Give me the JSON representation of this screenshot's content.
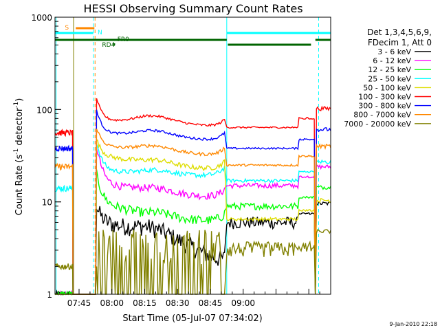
{
  "chart_data": {
    "type": "line",
    "title": "HESSI Observing Summary Count Rates",
    "xlabel": "Start Time (05-Jul-07 07:34:02)",
    "ylabel_main": "Count Rate (s",
    "ylabel_sup1": "-1",
    "ylabel_mid": " detector",
    "ylabel_sup2": "-1",
    "ylabel_end": ")",
    "y_scale": "log",
    "ylim": [
      1,
      1000
    ],
    "xlim_minutes": [
      34,
      160
    ],
    "x_ticks": [
      {
        "min": 45,
        "label": "07:45"
      },
      {
        "min": 60,
        "label": "08:00"
      },
      {
        "min": 75,
        "label": "08:15"
      },
      {
        "min": 90,
        "label": "08:30"
      },
      {
        "min": 105,
        "label": "08:45"
      },
      {
        "min": 120,
        "label": "09:00"
      }
    ],
    "y_ticks": [
      {
        "value": 1,
        "label": "1"
      },
      {
        "value": 10,
        "label": "10"
      },
      {
        "value": 100,
        "label": "100"
      },
      {
        "value": 1000,
        "label": "1000"
      }
    ],
    "legend_title_1": "Det 1,3,4,5,6,9,",
    "legend_title_2": "FDecim 1, Att 0",
    "legend_position": "right",
    "series": [
      {
        "name": "3 - 6 keV",
        "color": "#000000",
        "pre": 1,
        "plateau": [
          1.5,
          6.0,
          5.0,
          2.0
        ],
        "post": 6.0,
        "wobble": 0.22
      },
      {
        "name": "6 - 12 keV",
        "color": "#ff00ff",
        "pre": 1,
        "plateau": [
          2.5,
          16.0,
          13.0,
          11.0
        ],
        "post": 15.0,
        "wobble": 0.09
      },
      {
        "name": "12 - 25 keV",
        "color": "#00ff00",
        "pre": 1,
        "plateau": [
          2.0,
          10.0,
          7.0,
          6.0
        ],
        "post": 9.0,
        "wobble": 0.12
      },
      {
        "name": "25 - 50 keV",
        "color": "#00ffff",
        "pre": 14,
        "plateau": [
          2.0,
          22.0,
          20.0,
          19.0
        ],
        "post": 17.0,
        "wobble": 0.06
      },
      {
        "name": "50 - 100 keV",
        "color": "#dddd00",
        "pre": 0,
        "plateau": [
          1.5,
          32.0,
          26.0,
          22.0
        ],
        "post": 6.5,
        "wobble": 0.06
      },
      {
        "name": "100 - 300 keV",
        "color": "#ff0000",
        "pre": 56,
        "plateau": [
          1.8,
          74.0,
          78.0,
          63.0
        ],
        "post": 64.0,
        "wobble": 0.03
      },
      {
        "name": "300 - 800 keV",
        "color": "#0000ff",
        "pre": 38,
        "plateau": [
          1.8,
          55.0,
          54.0,
          45.0
        ],
        "post": 38.0,
        "wobble": 0.03
      },
      {
        "name": "800 - 7000 keV",
        "color": "#ff8800",
        "pre": 24,
        "plateau": [
          1.6,
          40.0,
          37.0,
          31.0
        ],
        "post": 25.0,
        "wobble": 0.04
      },
      {
        "name": "7000 - 20000 keV",
        "color": "#808000",
        "pre": 2,
        "plateau": [
          1.0,
          2.0,
          2.0,
          2.0
        ],
        "post": 3.0,
        "wobble": 0.3
      }
    ],
    "flags": [
      {
        "label": "S",
        "color": "#ff8800"
      },
      {
        "label": "N",
        "color": "#00ffff"
      },
      {
        "label": "RD4",
        "color": "#006400"
      },
      {
        "label": "FR0",
        "color": "#006400"
      }
    ],
    "footer": "9-Jan-2010 22:18"
  }
}
